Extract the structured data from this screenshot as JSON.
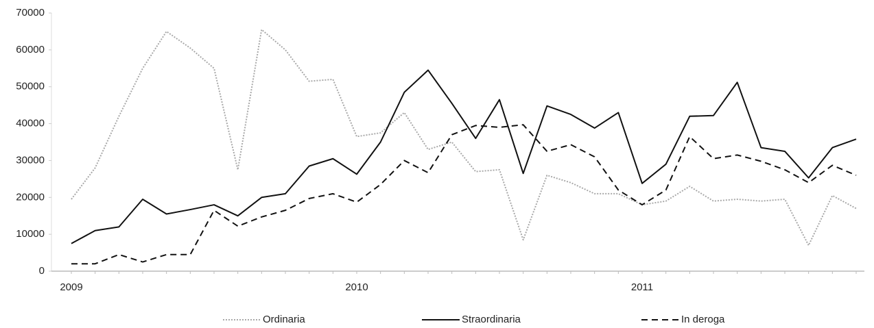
{
  "chart_data": {
    "type": "line",
    "categories": [
      "2009",
      null,
      null,
      null,
      null,
      null,
      null,
      null,
      null,
      null,
      null,
      null,
      "2010",
      null,
      null,
      null,
      null,
      null,
      null,
      null,
      null,
      null,
      null,
      null,
      "2011",
      null,
      null,
      null,
      null,
      null,
      null,
      null,
      null,
      null
    ],
    "series": [
      {
        "name": "Ordinaria",
        "color": "#a8a8a8",
        "line_style": "dotted",
        "values": [
          19500,
          28000,
          42000,
          55000,
          65000,
          60500,
          55000,
          27500,
          65500,
          60000,
          51500,
          52000,
          36500,
          37500,
          43000,
          33000,
          35000,
          27000,
          27500,
          8500,
          26000,
          24000,
          21000,
          21000,
          18000,
          19000,
          23000,
          19000,
          19500,
          19000,
          19500,
          7000,
          20500,
          17000
        ]
      },
      {
        "name": "Straordinaria",
        "color": "#111111",
        "line_style": "solid",
        "values": [
          7500,
          11000,
          12000,
          19500,
          15500,
          16700,
          18000,
          15000,
          20000,
          21000,
          28500,
          30500,
          26300,
          35000,
          48500,
          54500,
          45500,
          36000,
          46500,
          26500,
          44800,
          42500,
          38800,
          43000,
          23800,
          29000,
          42000,
          42200,
          51200,
          33500,
          32500,
          25300,
          33500,
          35800
        ]
      },
      {
        "name": "In deroga",
        "color": "#111111",
        "line_style": "dashed",
        "values": [
          2000,
          2000,
          4500,
          2500,
          4500,
          4500,
          16500,
          12200,
          14700,
          16500,
          19700,
          21000,
          18700,
          23500,
          30000,
          26700,
          37000,
          39500,
          39000,
          39700,
          32500,
          34300,
          31000,
          22000,
          18000,
          22000,
          36500,
          30500,
          31500,
          29800,
          27500,
          24000,
          28700,
          26000
        ]
      }
    ],
    "ylim": [
      0,
      70000
    ],
    "yticks": [
      0,
      10000,
      20000,
      30000,
      40000,
      50000,
      60000,
      70000
    ],
    "grid": false,
    "legend": "bottom"
  }
}
